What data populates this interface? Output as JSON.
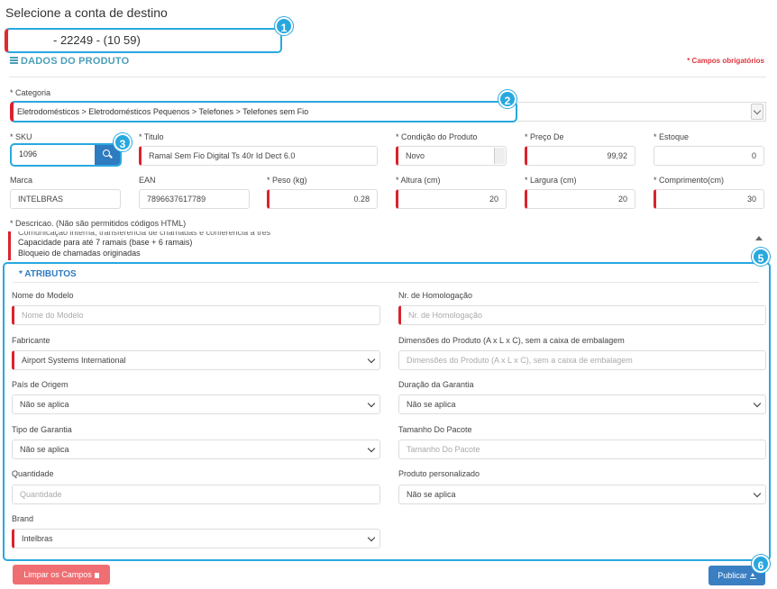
{
  "page_title": "Selecione a conta de destino",
  "account": {
    "value": "- 22249          - (10         59)"
  },
  "product": {
    "section_title": "DADOS DO PRODUTO",
    "required_note": "* Campos obrigatórios",
    "category": {
      "label": "* Categoria",
      "value": "Eletrodomésticos > Eletrodomésticos Pequenos > Telefones > Telefones sem Fio"
    },
    "sku": {
      "label": "* SKU",
      "value": "1096"
    },
    "title": {
      "label": "* Titulo",
      "value": "Ramal Sem Fio Digital Ts 40r Id Dect 6.0"
    },
    "condition": {
      "label": "* Condição do Produto",
      "value": "Novo"
    },
    "price": {
      "label": "* Preço De",
      "value": "99,92"
    },
    "stock": {
      "label": "* Estoque",
      "value": "0"
    },
    "brand": {
      "label": "Marca",
      "value": "INTELBRAS"
    },
    "ean": {
      "label": "EAN",
      "value": "7896637617789"
    },
    "weight": {
      "label": "* Peso (kg)",
      "value": "0.28"
    },
    "height": {
      "label": "* Altura (cm)",
      "value": "20"
    },
    "width": {
      "label": "* Largura (cm)",
      "value": "20"
    },
    "length": {
      "label": "* Comprimento(cm)",
      "value": "30"
    },
    "description": {
      "label": "* Descricao. (Não são permitidos códigos HTML)",
      "lines": [
        "Comunicação interna, transferência de chamadas e conferência a três",
        "Capacidade para até 7 ramais (base + 6 ramais)",
        "Bloqueio de chamadas originadas"
      ]
    }
  },
  "attributes": {
    "title": "* ATRIBUTOS",
    "model_name": {
      "label": "Nome do Modelo",
      "placeholder": "Nome do Modelo"
    },
    "homologation": {
      "label": "Nr. de Homologação",
      "placeholder": "Nr. de Homologação"
    },
    "manufacturer": {
      "label": "Fabricante",
      "value": "Airport Systems International"
    },
    "dimensions": {
      "label": "Dimensões do Produto (A x L x C), sem a caixa de embalagem",
      "placeholder": "Dimensões do Produto (A x L x C), sem a caixa de embalagem"
    },
    "origin": {
      "label": "País de Origem",
      "value": "Não se aplica"
    },
    "warranty_duration": {
      "label": "Duração da Garantia",
      "value": "Não se aplica"
    },
    "warranty_type": {
      "label": "Tipo de Garantia",
      "value": "Não se aplica"
    },
    "package_size": {
      "label": "Tamanho Do Pacote",
      "placeholder": "Tamanho Do Pacote"
    },
    "quantity": {
      "label": "Quantidade",
      "placeholder": "Quantidade"
    },
    "custom_product": {
      "label": "Produto personalizado",
      "value": "Não se aplica"
    },
    "brand": {
      "label": "Brand",
      "value": "Intelbras"
    }
  },
  "buttons": {
    "clear": "Limpar os Campos",
    "publish": "Publicar"
  },
  "annotations": [
    "1",
    "2",
    "3",
    "5",
    "6"
  ],
  "colors": {
    "highlight": "#29a8e0",
    "required": "#d9232e",
    "primary": "#2f7bbf",
    "danger": "#ef6e73"
  }
}
